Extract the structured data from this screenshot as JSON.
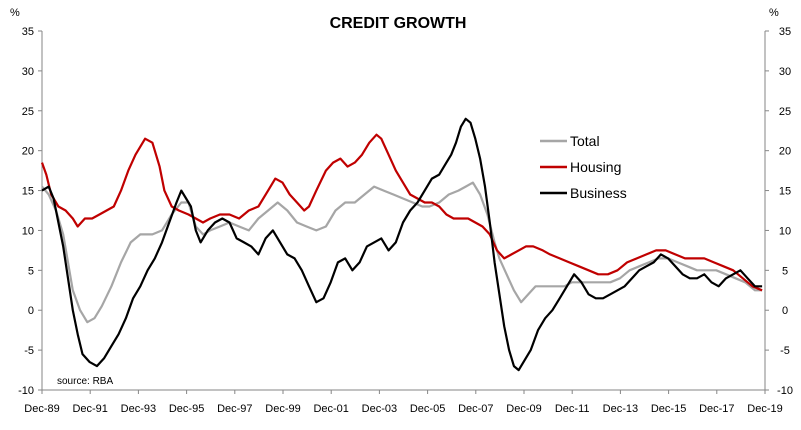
{
  "chart_data": {
    "type": "line",
    "title": "CREDIT GROWTH",
    "y_unit_left": "%",
    "y_unit_right": "%",
    "source_note": "source: RBA",
    "ylim": [
      -10,
      35
    ],
    "yticks": [
      -10,
      -5,
      0,
      5,
      10,
      15,
      20,
      25,
      30,
      35
    ],
    "ytick_labels": [
      "-10",
      "-5",
      "0",
      "5",
      "10",
      "15",
      "20",
      "25",
      "30",
      "35"
    ],
    "xlim": [
      1989.92,
      2019.92
    ],
    "xticks": [
      1989.92,
      1991.92,
      1993.92,
      1995.92,
      1997.92,
      1999.92,
      2001.92,
      2003.92,
      2005.92,
      2007.92,
      2009.92,
      2011.92,
      2013.92,
      2015.92,
      2017.92,
      2019.92
    ],
    "xtick_labels": [
      "Dec-89",
      "Dec-91",
      "Dec-93",
      "Dec-95",
      "Dec-97",
      "Dec-99",
      "Dec-01",
      "Dec-03",
      "Dec-05",
      "Dec-07",
      "Dec-09",
      "Dec-11",
      "Dec-13",
      "Dec-15",
      "Dec-17",
      "Dec-19"
    ],
    "grid": false,
    "legend_position": "upper-right of center",
    "series": [
      {
        "name": "Total",
        "color": "#a6a6a6",
        "points": [
          [
            1989.92,
            15.5
          ],
          [
            1990.2,
            14.5
          ],
          [
            1990.5,
            12.5
          ],
          [
            1990.8,
            9.5
          ],
          [
            1991.0,
            6.0
          ],
          [
            1991.2,
            2.5
          ],
          [
            1991.5,
            0.0
          ],
          [
            1991.8,
            -1.5
          ],
          [
            1992.1,
            -1.0
          ],
          [
            1992.4,
            0.5
          ],
          [
            1992.8,
            3.0
          ],
          [
            1993.2,
            6.0
          ],
          [
            1993.6,
            8.5
          ],
          [
            1994.0,
            9.5
          ],
          [
            1994.5,
            9.5
          ],
          [
            1994.9,
            10.0
          ],
          [
            1995.3,
            12.0
          ],
          [
            1995.7,
            13.5
          ],
          [
            1996.0,
            13.5
          ],
          [
            1996.3,
            10.5
          ],
          [
            1996.6,
            9.5
          ],
          [
            1996.9,
            10.0
          ],
          [
            1997.3,
            10.5
          ],
          [
            1997.7,
            11.0
          ],
          [
            1998.1,
            10.5
          ],
          [
            1998.5,
            10.0
          ],
          [
            1998.9,
            11.5
          ],
          [
            1999.3,
            12.5
          ],
          [
            1999.7,
            13.5
          ],
          [
            2000.1,
            12.5
          ],
          [
            2000.5,
            11.0
          ],
          [
            2000.9,
            10.5
          ],
          [
            2001.3,
            10.0
          ],
          [
            2001.7,
            10.5
          ],
          [
            2002.1,
            12.5
          ],
          [
            2002.5,
            13.5
          ],
          [
            2002.9,
            13.5
          ],
          [
            2003.3,
            14.5
          ],
          [
            2003.7,
            15.5
          ],
          [
            2004.1,
            15.0
          ],
          [
            2004.5,
            14.5
          ],
          [
            2004.9,
            14.0
          ],
          [
            2005.3,
            13.5
          ],
          [
            2005.7,
            13.0
          ],
          [
            2006.0,
            13.0
          ],
          [
            2006.4,
            13.5
          ],
          [
            2006.8,
            14.5
          ],
          [
            2007.2,
            15.0
          ],
          [
            2007.5,
            15.5
          ],
          [
            2007.8,
            16.0
          ],
          [
            2008.1,
            14.5
          ],
          [
            2008.4,
            12.0
          ],
          [
            2008.7,
            8.5
          ],
          [
            2008.9,
            6.5
          ],
          [
            2009.2,
            4.5
          ],
          [
            2009.5,
            2.5
          ],
          [
            2009.8,
            1.0
          ],
          [
            2010.1,
            2.0
          ],
          [
            2010.4,
            3.0
          ],
          [
            2010.8,
            3.0
          ],
          [
            2011.2,
            3.0
          ],
          [
            2011.6,
            3.0
          ],
          [
            2011.9,
            3.5
          ],
          [
            2012.3,
            3.5
          ],
          [
            2012.7,
            3.5
          ],
          [
            2013.1,
            3.5
          ],
          [
            2013.5,
            3.5
          ],
          [
            2013.9,
            4.0
          ],
          [
            2014.3,
            5.0
          ],
          [
            2014.7,
            5.5
          ],
          [
            2015.1,
            6.0
          ],
          [
            2015.5,
            6.5
          ],
          [
            2015.9,
            6.5
          ],
          [
            2016.3,
            6.0
          ],
          [
            2016.7,
            5.5
          ],
          [
            2017.1,
            5.0
          ],
          [
            2017.5,
            5.0
          ],
          [
            2017.9,
            5.0
          ],
          [
            2018.3,
            4.5
          ],
          [
            2018.7,
            4.0
          ],
          [
            2019.1,
            3.5
          ],
          [
            2019.5,
            2.5
          ],
          [
            2019.8,
            2.5
          ]
        ]
      },
      {
        "name": "Housing",
        "color": "#c00000",
        "points": [
          [
            1989.92,
            18.5
          ],
          [
            1990.1,
            17.0
          ],
          [
            1990.3,
            14.5
          ],
          [
            1990.6,
            13.0
          ],
          [
            1990.9,
            12.5
          ],
          [
            1991.2,
            11.5
          ],
          [
            1991.4,
            10.5
          ],
          [
            1991.7,
            11.5
          ],
          [
            1992.0,
            11.5
          ],
          [
            1992.3,
            12.0
          ],
          [
            1992.6,
            12.5
          ],
          [
            1992.9,
            13.0
          ],
          [
            1993.2,
            15.0
          ],
          [
            1993.5,
            17.5
          ],
          [
            1993.8,
            19.5
          ],
          [
            1994.0,
            20.5
          ],
          [
            1994.2,
            21.5
          ],
          [
            1994.5,
            21.0
          ],
          [
            1994.8,
            18.0
          ],
          [
            1995.0,
            15.0
          ],
          [
            1995.3,
            13.0
          ],
          [
            1995.6,
            12.5
          ],
          [
            1996.0,
            12.0
          ],
          [
            1996.3,
            11.5
          ],
          [
            1996.6,
            11.0
          ],
          [
            1996.9,
            11.5
          ],
          [
            1997.3,
            12.0
          ],
          [
            1997.7,
            12.0
          ],
          [
            1998.1,
            11.5
          ],
          [
            1998.5,
            12.5
          ],
          [
            1998.9,
            13.0
          ],
          [
            1999.3,
            15.0
          ],
          [
            1999.6,
            16.5
          ],
          [
            1999.9,
            16.0
          ],
          [
            2000.2,
            14.5
          ],
          [
            2000.5,
            13.5
          ],
          [
            2000.8,
            12.5
          ],
          [
            2001.0,
            13.0
          ],
          [
            2001.3,
            15.0
          ],
          [
            2001.7,
            17.5
          ],
          [
            2002.0,
            18.5
          ],
          [
            2002.3,
            19.0
          ],
          [
            2002.6,
            18.0
          ],
          [
            2002.9,
            18.5
          ],
          [
            2003.2,
            19.5
          ],
          [
            2003.5,
            21.0
          ],
          [
            2003.8,
            22.0
          ],
          [
            2004.0,
            21.5
          ],
          [
            2004.3,
            19.5
          ],
          [
            2004.6,
            17.5
          ],
          [
            2004.9,
            16.0
          ],
          [
            2005.2,
            14.5
          ],
          [
            2005.5,
            14.0
          ],
          [
            2005.8,
            13.5
          ],
          [
            2006.1,
            13.5
          ],
          [
            2006.4,
            13.0
          ],
          [
            2006.7,
            12.0
          ],
          [
            2007.0,
            11.5
          ],
          [
            2007.3,
            11.5
          ],
          [
            2007.6,
            11.5
          ],
          [
            2007.9,
            11.0
          ],
          [
            2008.2,
            10.5
          ],
          [
            2008.5,
            9.5
          ],
          [
            2008.8,
            7.5
          ],
          [
            2009.1,
            6.5
          ],
          [
            2009.4,
            7.0
          ],
          [
            2009.7,
            7.5
          ],
          [
            2010.0,
            8.0
          ],
          [
            2010.3,
            8.0
          ],
          [
            2010.7,
            7.5
          ],
          [
            2011.0,
            7.0
          ],
          [
            2011.4,
            6.5
          ],
          [
            2011.8,
            6.0
          ],
          [
            2012.2,
            5.5
          ],
          [
            2012.6,
            5.0
          ],
          [
            2013.0,
            4.5
          ],
          [
            2013.4,
            4.5
          ],
          [
            2013.8,
            5.0
          ],
          [
            2014.2,
            6.0
          ],
          [
            2014.6,
            6.5
          ],
          [
            2015.0,
            7.0
          ],
          [
            2015.4,
            7.5
          ],
          [
            2015.8,
            7.5
          ],
          [
            2016.2,
            7.0
          ],
          [
            2016.6,
            6.5
          ],
          [
            2017.0,
            6.5
          ],
          [
            2017.4,
            6.5
          ],
          [
            2017.8,
            6.0
          ],
          [
            2018.2,
            5.5
          ],
          [
            2018.6,
            5.0
          ],
          [
            2019.0,
            4.0
          ],
          [
            2019.4,
            3.0
          ],
          [
            2019.8,
            2.5
          ]
        ]
      },
      {
        "name": "Business",
        "color": "#000000",
        "points": [
          [
            1989.92,
            15.0
          ],
          [
            1990.2,
            15.5
          ],
          [
            1990.4,
            14.0
          ],
          [
            1990.6,
            11.0
          ],
          [
            1990.8,
            8.0
          ],
          [
            1991.0,
            4.0
          ],
          [
            1991.2,
            0.0
          ],
          [
            1991.4,
            -3.0
          ],
          [
            1991.6,
            -5.5
          ],
          [
            1991.9,
            -6.5
          ],
          [
            1992.2,
            -7.0
          ],
          [
            1992.5,
            -6.0
          ],
          [
            1992.8,
            -4.5
          ],
          [
            1993.1,
            -3.0
          ],
          [
            1993.4,
            -1.0
          ],
          [
            1993.7,
            1.5
          ],
          [
            1994.0,
            3.0
          ],
          [
            1994.3,
            5.0
          ],
          [
            1994.6,
            6.5
          ],
          [
            1994.9,
            8.5
          ],
          [
            1995.2,
            11.0
          ],
          [
            1995.5,
            13.5
          ],
          [
            1995.7,
            15.0
          ],
          [
            1995.9,
            14.0
          ],
          [
            1996.1,
            13.0
          ],
          [
            1996.3,
            10.0
          ],
          [
            1996.5,
            8.5
          ],
          [
            1996.8,
            10.0
          ],
          [
            1997.1,
            11.0
          ],
          [
            1997.4,
            11.5
          ],
          [
            1997.7,
            11.0
          ],
          [
            1998.0,
            9.0
          ],
          [
            1998.3,
            8.5
          ],
          [
            1998.6,
            8.0
          ],
          [
            1998.9,
            7.0
          ],
          [
            1999.2,
            9.0
          ],
          [
            1999.5,
            10.0
          ],
          [
            1999.8,
            8.5
          ],
          [
            2000.1,
            7.0
          ],
          [
            2000.4,
            6.5
          ],
          [
            2000.7,
            5.0
          ],
          [
            2001.0,
            3.0
          ],
          [
            2001.3,
            1.0
          ],
          [
            2001.6,
            1.5
          ],
          [
            2001.9,
            3.5
          ],
          [
            2002.2,
            6.0
          ],
          [
            2002.5,
            6.5
          ],
          [
            2002.8,
            5.0
          ],
          [
            2003.1,
            6.0
          ],
          [
            2003.4,
            8.0
          ],
          [
            2003.7,
            8.5
          ],
          [
            2004.0,
            9.0
          ],
          [
            2004.3,
            7.5
          ],
          [
            2004.6,
            8.5
          ],
          [
            2004.9,
            11.0
          ],
          [
            2005.2,
            12.5
          ],
          [
            2005.5,
            13.5
          ],
          [
            2005.8,
            15.0
          ],
          [
            2006.1,
            16.5
          ],
          [
            2006.4,
            17.0
          ],
          [
            2006.7,
            18.5
          ],
          [
            2006.9,
            19.5
          ],
          [
            2007.1,
            21.0
          ],
          [
            2007.3,
            23.0
          ],
          [
            2007.5,
            24.0
          ],
          [
            2007.7,
            23.5
          ],
          [
            2007.9,
            21.5
          ],
          [
            2008.1,
            19.0
          ],
          [
            2008.3,
            15.5
          ],
          [
            2008.5,
            11.0
          ],
          [
            2008.7,
            6.0
          ],
          [
            2008.9,
            2.0
          ],
          [
            2009.1,
            -2.0
          ],
          [
            2009.3,
            -5.0
          ],
          [
            2009.5,
            -7.0
          ],
          [
            2009.7,
            -7.5
          ],
          [
            2009.9,
            -6.5
          ],
          [
            2010.2,
            -5.0
          ],
          [
            2010.5,
            -2.5
          ],
          [
            2010.8,
            -1.0
          ],
          [
            2011.1,
            0.0
          ],
          [
            2011.4,
            1.5
          ],
          [
            2011.7,
            3.0
          ],
          [
            2012.0,
            4.5
          ],
          [
            2012.3,
            3.5
          ],
          [
            2012.6,
            2.0
          ],
          [
            2012.9,
            1.5
          ],
          [
            2013.2,
            1.5
          ],
          [
            2013.5,
            2.0
          ],
          [
            2013.8,
            2.5
          ],
          [
            2014.1,
            3.0
          ],
          [
            2014.4,
            4.0
          ],
          [
            2014.7,
            5.0
          ],
          [
            2015.0,
            5.5
          ],
          [
            2015.3,
            6.0
          ],
          [
            2015.6,
            7.0
          ],
          [
            2015.9,
            6.5
          ],
          [
            2016.2,
            5.5
          ],
          [
            2016.5,
            4.5
          ],
          [
            2016.8,
            4.0
          ],
          [
            2017.1,
            4.0
          ],
          [
            2017.4,
            4.5
          ],
          [
            2017.7,
            3.5
          ],
          [
            2018.0,
            3.0
          ],
          [
            2018.3,
            4.0
          ],
          [
            2018.6,
            4.5
          ],
          [
            2018.9,
            5.0
          ],
          [
            2019.2,
            4.0
          ],
          [
            2019.5,
            3.0
          ],
          [
            2019.8,
            3.0
          ]
        ]
      }
    ]
  }
}
